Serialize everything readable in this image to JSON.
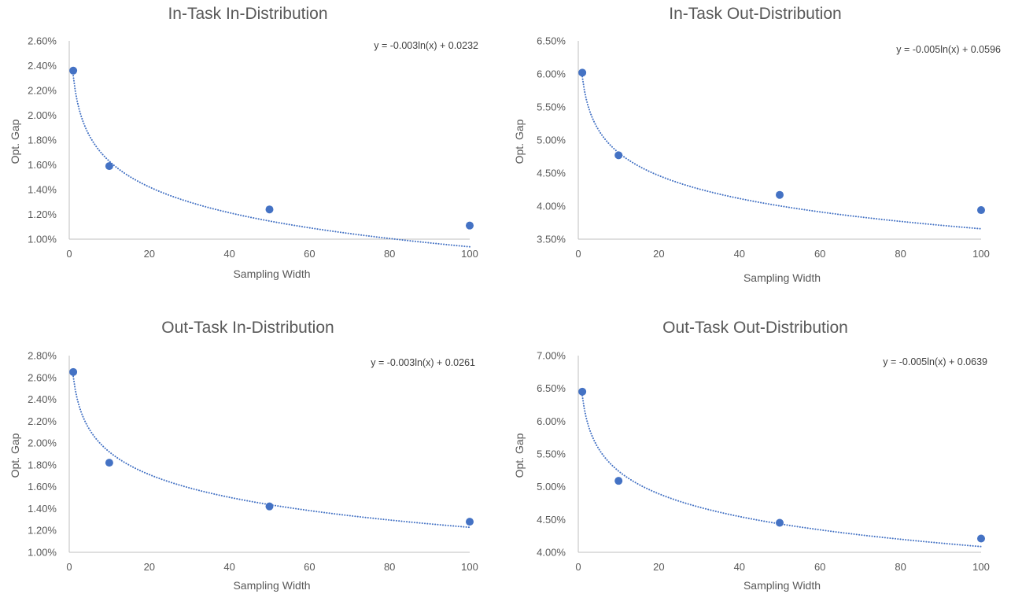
{
  "colors": {
    "marker": "#4472C4",
    "trendline": "#4472C4",
    "axis": "#BFBFBF",
    "text": "#595959"
  },
  "chart_data": [
    {
      "type": "scatter",
      "title": "In-Task In-Distribution",
      "xlabel": "Sampling Width",
      "ylabel": "Opt. Gap",
      "xlim": [
        0,
        100
      ],
      "ylim": [
        0.01,
        0.026
      ],
      "xticks": [
        0,
        20,
        40,
        60,
        80,
        100
      ],
      "xtick_labels": [
        "0",
        "20",
        "40",
        "60",
        "80",
        "100"
      ],
      "yticks": [
        0.01,
        0.012,
        0.014,
        0.016,
        0.018,
        0.02,
        0.022,
        0.024,
        0.026
      ],
      "ytick_labels": [
        "1.00%",
        "1.20%",
        "1.40%",
        "1.60%",
        "1.80%",
        "2.00%",
        "2.20%",
        "2.40%",
        "2.60%"
      ],
      "grid": false,
      "series": [
        {
          "x": [
            1,
            10,
            50,
            100
          ],
          "y": [
            0.0236,
            0.0159,
            0.0124,
            0.0111
          ]
        }
      ],
      "trendline": {
        "type": "logarithmic",
        "a": -0.003,
        "b": 0.0232,
        "equation": "y = -0.003ln(x) + 0.0232"
      }
    },
    {
      "type": "scatter",
      "title": "In-Task Out-Distribution",
      "xlabel": "Sampling Width",
      "ylabel": "Opt. Gap",
      "xlim": [
        0,
        100
      ],
      "ylim": [
        0.035,
        0.065
      ],
      "xticks": [
        0,
        20,
        40,
        60,
        80,
        100
      ],
      "xtick_labels": [
        "0",
        "20",
        "40",
        "60",
        "80",
        "100"
      ],
      "yticks": [
        0.035,
        0.04,
        0.045,
        0.05,
        0.055,
        0.06,
        0.065
      ],
      "ytick_labels": [
        "3.50%",
        "4.00%",
        "4.50%",
        "5.00%",
        "5.50%",
        "6.00%",
        "6.50%"
      ],
      "grid": false,
      "series": [
        {
          "x": [
            1,
            10,
            50,
            100
          ],
          "y": [
            0.0602,
            0.0477,
            0.0417,
            0.0394
          ]
        }
      ],
      "trendline": {
        "type": "logarithmic",
        "a": -0.005,
        "b": 0.0596,
        "equation": "y = -0.005ln(x) + 0.0596"
      }
    },
    {
      "type": "scatter",
      "title": "Out-Task In-Distribution",
      "xlabel": "Sampling Width",
      "ylabel": "Opt. Gap",
      "xlim": [
        0,
        100
      ],
      "ylim": [
        0.01,
        0.028
      ],
      "xticks": [
        0,
        20,
        40,
        60,
        80,
        100
      ],
      "xtick_labels": [
        "0",
        "20",
        "40",
        "60",
        "80",
        "100"
      ],
      "yticks": [
        0.01,
        0.012,
        0.014,
        0.016,
        0.018,
        0.02,
        0.022,
        0.024,
        0.026,
        0.028
      ],
      "ytick_labels": [
        "1.00%",
        "1.20%",
        "1.40%",
        "1.60%",
        "1.80%",
        "2.00%",
        "2.20%",
        "2.40%",
        "2.60%",
        "2.80%"
      ],
      "grid": false,
      "series": [
        {
          "x": [
            1,
            10,
            50,
            100
          ],
          "y": [
            0.0265,
            0.0182,
            0.0142,
            0.0128
          ]
        }
      ],
      "trendline": {
        "type": "logarithmic",
        "a": -0.003,
        "b": 0.0261,
        "equation": "y = -0.003ln(x) + 0.0261"
      }
    },
    {
      "type": "scatter",
      "title": "Out-Task Out-Distribution",
      "xlabel": "Sampling Width",
      "ylabel": "Opt. Gap",
      "xlim": [
        0,
        100
      ],
      "ylim": [
        0.04,
        0.07
      ],
      "xticks": [
        0,
        20,
        40,
        60,
        80,
        100
      ],
      "xtick_labels": [
        "0",
        "20",
        "40",
        "60",
        "80",
        "100"
      ],
      "yticks": [
        0.04,
        0.045,
        0.05,
        0.055,
        0.06,
        0.065,
        0.07
      ],
      "ytick_labels": [
        "4.00%",
        "4.50%",
        "5.00%",
        "5.50%",
        "6.00%",
        "6.50%",
        "7.00%"
      ],
      "grid": false,
      "series": [
        {
          "x": [
            1,
            10,
            50,
            100
          ],
          "y": [
            0.0645,
            0.0509,
            0.0445,
            0.0421
          ]
        }
      ],
      "trendline": {
        "type": "logarithmic",
        "a": -0.005,
        "b": 0.0639,
        "equation": "y = -0.005ln(x) + 0.0639"
      }
    }
  ]
}
